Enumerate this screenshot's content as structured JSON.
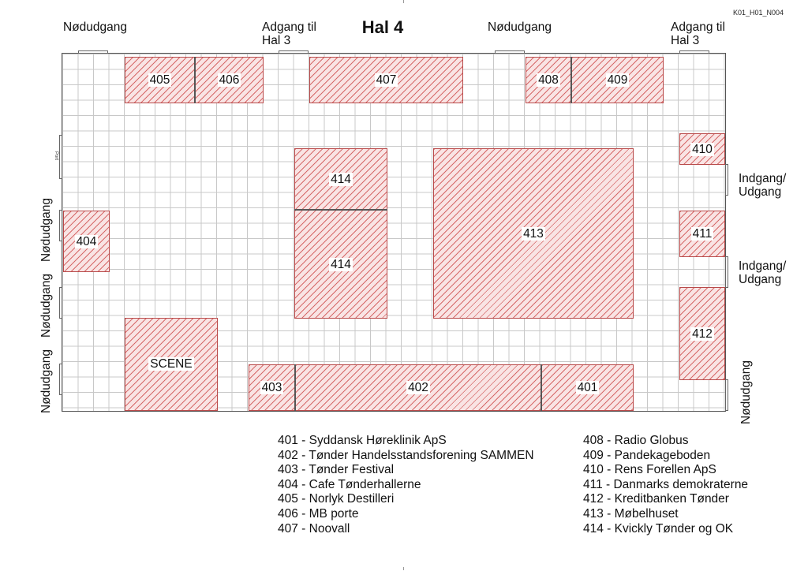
{
  "doc_code": "K01_H01_N004",
  "title": "Hal 4",
  "labels": {
    "emergency_exit": "Nødudgang",
    "access_line1": "Adgang til",
    "access_line2": "Hal 3",
    "entrance_line1": "Indgang/",
    "entrance_line2": "Udgang",
    "port": "Port"
  },
  "booths": {
    "b405": "405",
    "b406": "406",
    "b407": "407",
    "b408": "408",
    "b409": "409",
    "b410": "410",
    "b411": "411",
    "b412": "412",
    "b413": "413",
    "b414_top": "414",
    "b414_bottom": "414",
    "b404": "404",
    "scene": "SCENE",
    "b403": "403",
    "b402": "402",
    "b401": "401"
  },
  "legend_left": [
    "401 - Syddansk Høreklinik ApS",
    "402 - Tønder Handelsstandsforening SAMMEN",
    "403 - Tønder Festival",
    "404 - Cafe Tønderhallerne",
    "405 - Norlyk Destilleri",
    "406 - MB porte",
    "407 - Noovall"
  ],
  "legend_right": [
    "408 - Radio Globus",
    "409 - Pandekageboden",
    "410 - Rens Forellen ApS",
    "411 - Danmarks demokraterne",
    "412 - Kreditbanken Tønder",
    "413 - Møbelhuset",
    "414 - Kvickly Tønder og OK"
  ],
  "colors": {
    "booth_hatch": "#d66a6a",
    "booth_border": "#b84a4a",
    "grid": "#c8c8c8"
  }
}
